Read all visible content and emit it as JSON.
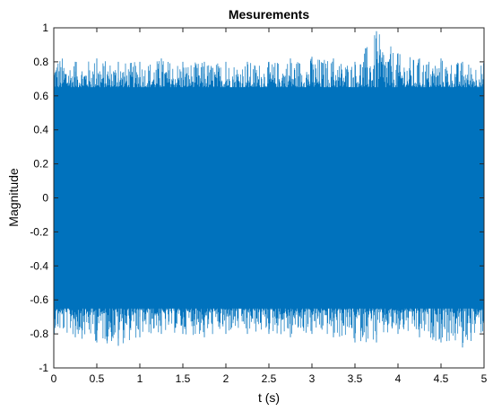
{
  "chart_data": {
    "type": "line",
    "title": "Mesurements",
    "xlabel": "t (s)",
    "ylabel": "Magnitude",
    "xlim": [
      0,
      5
    ],
    "ylim": [
      -1,
      1
    ],
    "xticks": [
      "0",
      "0.5",
      "1",
      "1.5",
      "2",
      "2.5",
      "3",
      "3.5",
      "4",
      "4.5",
      "5"
    ],
    "yticks": [
      "1",
      "0.8",
      "0.6",
      "0.4",
      "0.2",
      "0",
      "-0.2",
      "-0.4",
      "-0.6",
      "-0.8",
      "-1"
    ],
    "grid": false,
    "series": [
      {
        "color": "#0072bd",
        "signal_description": "dense noise-like waveform centered at 0",
        "x": [
          0,
          0.25,
          0.5,
          0.75,
          1.0,
          1.25,
          1.5,
          1.75,
          2.0,
          2.25,
          2.5,
          2.75,
          3.0,
          3.25,
          3.5,
          3.75,
          4.0,
          4.25,
          4.5,
          4.75,
          5.0
        ],
        "upper_envelope": [
          0.85,
          0.8,
          0.82,
          0.8,
          0.8,
          0.82,
          0.8,
          0.8,
          0.8,
          0.8,
          0.8,
          0.82,
          0.83,
          0.82,
          0.8,
          0.98,
          0.85,
          0.82,
          0.82,
          0.8,
          0.8
        ],
        "lower_envelope": [
          -0.8,
          -0.82,
          -0.85,
          -0.87,
          -0.82,
          -0.8,
          -0.8,
          -0.82,
          -0.8,
          -0.8,
          -0.8,
          -0.82,
          -0.8,
          -0.82,
          -0.85,
          -0.85,
          -0.8,
          -0.82,
          -0.85,
          -0.88,
          -0.8
        ],
        "typical_amplitude": 0.65
      }
    ]
  }
}
